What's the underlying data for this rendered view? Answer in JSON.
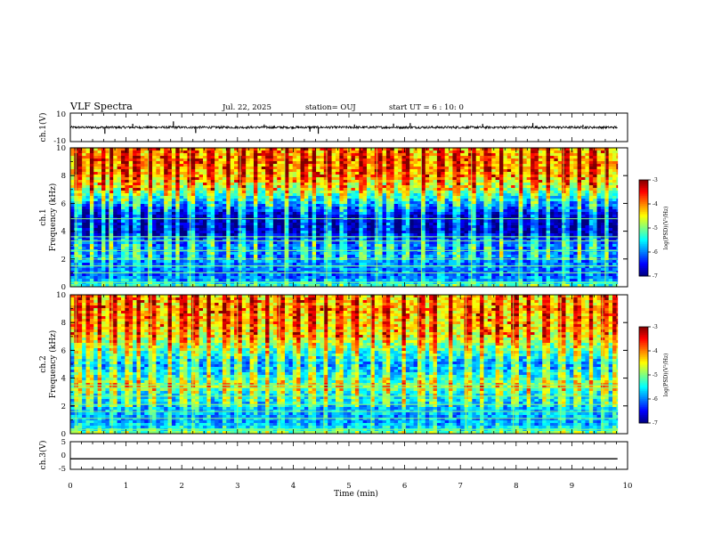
{
  "header": {
    "title": "VLF Spectra",
    "date": "Jul. 22, 2025",
    "station": "station= OUJ",
    "start": "start UT =  6 : 10: 0"
  },
  "chart_data": [
    {
      "type": "line",
      "name": "ch1-waveform",
      "ylabel": "ch.1(V)",
      "ylim": [
        -10,
        10
      ],
      "yticks": [
        "10",
        "-10"
      ],
      "xlim": [
        0,
        10
      ],
      "baseline": 0,
      "spikes": [
        {
          "t": 0.62,
          "v": -4.5
        },
        {
          "t": 1.12,
          "v": 2.5
        },
        {
          "t": 1.85,
          "v": 4.2
        },
        {
          "t": 2.25,
          "v": -4.0
        },
        {
          "t": 3.48,
          "v": 2.0
        },
        {
          "t": 4.3,
          "v": -3.0
        },
        {
          "t": 4.45,
          "v": -4.5
        },
        {
          "t": 5.1,
          "v": 2.0
        },
        {
          "t": 5.8,
          "v": 2.6
        },
        {
          "t": 6.1,
          "v": 3.0
        },
        {
          "t": 7.4,
          "v": 2.4
        },
        {
          "t": 8.3,
          "v": 3.0
        },
        {
          "t": 9.2,
          "v": 1.8
        }
      ]
    },
    {
      "type": "heatmap",
      "name": "ch1-spectrogram",
      "ylabel": "ch.1",
      "ylabel2": "Frequency (kHz)",
      "ylim": [
        0,
        10
      ],
      "yticks": [
        "0",
        "2",
        "4",
        "6",
        "8",
        "10"
      ],
      "xlim": [
        0,
        10
      ],
      "data_end_min": 9.82,
      "colorbar": {
        "label": "log(PSD)(V²/Hz)",
        "min": -7,
        "max": -3,
        "ticks": [
          "-3",
          "-4",
          "-5",
          "-6",
          "-7"
        ]
      },
      "profile_khz": [
        0,
        0.5,
        1,
        2,
        3,
        4,
        5,
        6,
        7,
        8,
        9,
        10
      ],
      "profile_logpsd": [
        -5.2,
        -6.0,
        -6.2,
        -6.0,
        -6.1,
        -6.9,
        -6.9,
        -6.0,
        -5.0,
        -4.4,
        -4.2,
        -4.4
      ],
      "tones_khz": [
        0.3,
        1.0,
        1.5,
        2.0,
        2.6,
        3.3,
        3.6,
        4.9
      ],
      "spheric_times_min": [
        0.1,
        0.35,
        0.55,
        0.7,
        0.95,
        1.15,
        1.4,
        1.7,
        1.9,
        2.15,
        2.5,
        2.8,
        3.05,
        3.3,
        3.55,
        3.85,
        4.15,
        4.35,
        4.6,
        4.85,
        5.2,
        5.5,
        5.7,
        6.0,
        6.3,
        6.6,
        6.9,
        7.2,
        7.45,
        7.7,
        8.05,
        8.3,
        8.55,
        8.85,
        9.1,
        9.35,
        9.6
      ]
    },
    {
      "type": "heatmap",
      "name": "ch2-spectrogram",
      "ylabel": "ch.2",
      "ylabel2": "Frequency (kHz)",
      "ylim": [
        0,
        10
      ],
      "yticks": [
        "0",
        "2",
        "4",
        "6",
        "8",
        "10"
      ],
      "xlim": [
        0,
        10
      ],
      "data_end_min": 9.82,
      "colorbar": {
        "label": "log(PSD)(V²/Hz)",
        "min": -7,
        "max": -3,
        "ticks": [
          "-3",
          "-4",
          "-5",
          "-6",
          "-7"
        ]
      },
      "profile_khz": [
        0,
        0.5,
        1,
        2,
        3,
        3.4,
        4,
        5,
        6,
        7,
        8,
        9,
        10
      ],
      "profile_logpsd": [
        -5.0,
        -5.8,
        -6.0,
        -5.8,
        -5.5,
        -4.9,
        -5.5,
        -6.0,
        -5.3,
        -4.7,
        -4.5,
        -4.4,
        -4.5
      ],
      "tones_khz": [
        0.3,
        1.1,
        1.6,
        2.1,
        2.7,
        3.3,
        3.5
      ],
      "spheric_times_min": [
        0.1,
        0.3,
        0.5,
        0.75,
        1.0,
        1.2,
        1.45,
        1.75,
        2.0,
        2.2,
        2.45,
        2.75,
        3.0,
        3.25,
        3.5,
        3.75,
        4.05,
        4.3,
        4.55,
        4.8,
        5.1,
        5.4,
        5.65,
        5.95,
        6.25,
        6.5,
        6.8,
        7.1,
        7.35,
        7.65,
        7.95,
        8.2,
        8.5,
        8.8,
        9.05,
        9.3,
        9.55,
        9.75
      ]
    },
    {
      "type": "line",
      "name": "ch3-waveform",
      "ylabel": "ch.3(V)",
      "ylim": [
        -5,
        5
      ],
      "yticks": [
        "5",
        "0",
        "-5"
      ],
      "xlim": [
        0,
        10
      ],
      "xlabel": "Time (min)",
      "xticks": [
        "0",
        "1",
        "2",
        "3",
        "4",
        "5",
        "6",
        "7",
        "8",
        "9",
        "10"
      ],
      "level": -1.2,
      "data_end_min": 9.82
    }
  ]
}
